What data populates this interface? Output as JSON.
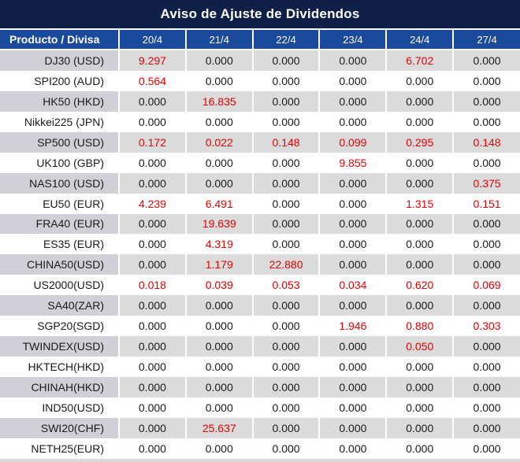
{
  "title": "Aviso de Ajuste de Dividendos",
  "colors": {
    "title_bg": "#0e2047",
    "header_bg": "#1a4a9c",
    "stripe_label_gray": "#d0d0d6",
    "stripe_value_gray": "#dbdbdb",
    "highlight_red": "#e60000",
    "text": "#1a1a1a"
  },
  "table": {
    "columns": [
      "Producto / Divisa",
      "20/4",
      "21/4",
      "22/4",
      "23/4",
      "24/4",
      "27/4"
    ],
    "rows": [
      {
        "label": "DJ30 (USD)",
        "values": [
          "9.297",
          "0.000",
          "0.000",
          "0.000",
          "6.702",
          "0.000"
        ],
        "red": [
          1,
          0,
          0,
          0,
          1,
          0
        ]
      },
      {
        "label": "SPI200 (AUD)",
        "values": [
          "0.564",
          "0.000",
          "0.000",
          "0.000",
          "0.000",
          "0.000"
        ],
        "red": [
          1,
          0,
          0,
          0,
          0,
          0
        ]
      },
      {
        "label": "HK50 (HKD)",
        "values": [
          "0.000",
          "16.835",
          "0.000",
          "0.000",
          "0.000",
          "0.000"
        ],
        "red": [
          0,
          1,
          0,
          0,
          0,
          0
        ]
      },
      {
        "label": "Nikkei225 (JPN)",
        "values": [
          "0.000",
          "0.000",
          "0.000",
          "0.000",
          "0.000",
          "0.000"
        ],
        "red": [
          0,
          0,
          0,
          0,
          0,
          0
        ]
      },
      {
        "label": "SP500 (USD)",
        "values": [
          "0.172",
          "0.022",
          "0.148",
          "0.099",
          "0.295",
          "0.148"
        ],
        "red": [
          1,
          1,
          1,
          1,
          1,
          1
        ]
      },
      {
        "label": "UK100 (GBP)",
        "values": [
          "0.000",
          "0.000",
          "0.000",
          "9.855",
          "0.000",
          "0.000"
        ],
        "red": [
          0,
          0,
          0,
          1,
          0,
          0
        ]
      },
      {
        "label": "NAS100 (USD)",
        "values": [
          "0.000",
          "0.000",
          "0.000",
          "0.000",
          "0.000",
          "0.375"
        ],
        "red": [
          0,
          0,
          0,
          0,
          0,
          1
        ]
      },
      {
        "label": "EU50 (EUR)",
        "values": [
          "4.239",
          "6.491",
          "0.000",
          "0.000",
          "1.315",
          "0.151"
        ],
        "red": [
          1,
          1,
          0,
          0,
          1,
          1
        ]
      },
      {
        "label": "FRA40 (EUR)",
        "values": [
          "0.000",
          "19.639",
          "0.000",
          "0.000",
          "0.000",
          "0.000"
        ],
        "red": [
          0,
          1,
          0,
          0,
          0,
          0
        ]
      },
      {
        "label": "ES35 (EUR)",
        "values": [
          "0.000",
          "4.319",
          "0.000",
          "0.000",
          "0.000",
          "0.000"
        ],
        "red": [
          0,
          1,
          0,
          0,
          0,
          0
        ]
      },
      {
        "label": "CHINA50(USD)",
        "values": [
          "0.000",
          "1.179",
          "22.880",
          "0.000",
          "0.000",
          "0.000"
        ],
        "red": [
          0,
          1,
          1,
          0,
          0,
          0
        ]
      },
      {
        "label": "US2000(USD)",
        "values": [
          "0.018",
          "0.039",
          "0.053",
          "0.034",
          "0.620",
          "0.069"
        ],
        "red": [
          1,
          1,
          1,
          1,
          1,
          1
        ]
      },
      {
        "label": "SA40(ZAR)",
        "values": [
          "0.000",
          "0.000",
          "0.000",
          "0.000",
          "0.000",
          "0.000"
        ],
        "red": [
          0,
          0,
          0,
          0,
          0,
          0
        ]
      },
      {
        "label": "SGP20(SGD)",
        "values": [
          "0.000",
          "0.000",
          "0.000",
          "1.946",
          "0.880",
          "0.303"
        ],
        "red": [
          0,
          0,
          0,
          1,
          1,
          1
        ]
      },
      {
        "label": "TWINDEX(USD)",
        "values": [
          "0.000",
          "0.000",
          "0.000",
          "0.000",
          "0.050",
          "0.000"
        ],
        "red": [
          0,
          0,
          0,
          0,
          1,
          0
        ]
      },
      {
        "label": "HKTECH(HKD)",
        "values": [
          "0.000",
          "0.000",
          "0.000",
          "0.000",
          "0.000",
          "0.000"
        ],
        "red": [
          0,
          0,
          0,
          0,
          0,
          0
        ]
      },
      {
        "label": "CHINAH(HKD)",
        "values": [
          "0.000",
          "0.000",
          "0.000",
          "0.000",
          "0.000",
          "0.000"
        ],
        "red": [
          0,
          0,
          0,
          0,
          0,
          0
        ]
      },
      {
        "label": "IND50(USD)",
        "values": [
          "0.000",
          "0.000",
          "0.000",
          "0.000",
          "0.000",
          "0.000"
        ],
        "red": [
          0,
          0,
          0,
          0,
          0,
          0
        ]
      },
      {
        "label": "SWI20(CHF)",
        "values": [
          "0.000",
          "25.637",
          "0.000",
          "0.000",
          "0.000",
          "0.000"
        ],
        "red": [
          0,
          1,
          0,
          0,
          0,
          0
        ]
      },
      {
        "label": "NETH25(EUR)",
        "values": [
          "0.000",
          "0.000",
          "0.000",
          "0.000",
          "0.000",
          "0.000"
        ],
        "red": [
          0,
          0,
          0,
          0,
          0,
          0
        ]
      }
    ]
  }
}
